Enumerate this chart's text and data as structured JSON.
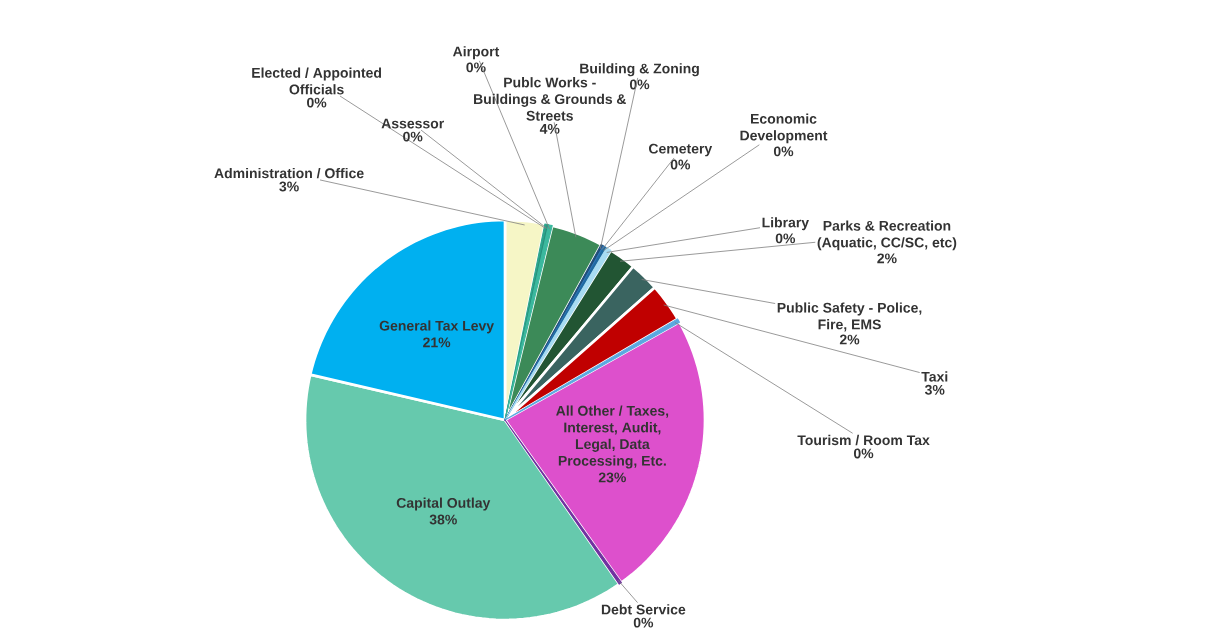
{
  "chart_data": {
    "type": "pie",
    "categories": [
      "Administration / Office",
      "Elected / Appointed Officials",
      "Assessor",
      "Airport",
      "Publc Works - Buildings & Grounds & Streets",
      "Building & Zoning",
      "Cemetery",
      "Economic Development",
      "Library",
      "Parks & Recreation (Aquatic, CC/SC, etc)",
      "Public Safety - Police, Fire, EMS",
      "Taxi",
      "Tourism / Room Tax",
      "All Other / Taxes, Interest, Audit, Legal, Data Processing, Etc.",
      "Debt Service",
      "Capital Outlay",
      "General Tax Levy"
    ],
    "values": [
      3.2,
      0.2,
      0.1,
      0.3,
      4.2,
      0.2,
      0.1,
      0.2,
      0.4,
      2.2,
      2.4,
      3.1,
      0.3,
      23.3,
      0.2,
      38.4,
      21.4
    ],
    "value_labels": [
      "3%",
      "0%",
      "0%",
      "0%",
      "4%",
      "0%",
      "0%",
      "0%",
      "0%",
      "2%",
      "2%",
      "3%",
      "0%",
      "23%",
      "0%",
      "38%",
      "21%"
    ],
    "colors": [
      "#f6f6c6",
      "#2ca58d",
      "#27907b",
      "#3bb89e",
      "#3c8a58",
      "#1f4e79",
      "#2e75b6",
      "#1f6aa0",
      "#a8dcf2",
      "#225533",
      "#3a6460",
      "#c00000",
      "#5aa8e0",
      "#dd50cc",
      "#7030a0",
      "#66c9ad",
      "#00b0f0"
    ]
  }
}
